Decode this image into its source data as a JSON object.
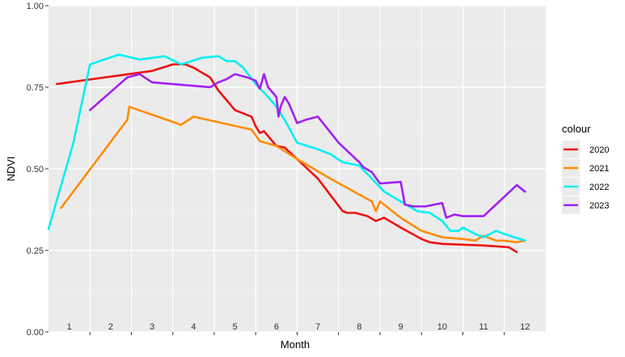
{
  "chart_data": {
    "type": "line",
    "title": "",
    "xlabel": "Month",
    "ylabel": "NDVI",
    "xlim": [
      0.5,
      12.5
    ],
    "ylim": [
      0,
      1
    ],
    "x_inside_labels": [
      "1",
      "2",
      "3",
      "4",
      "5",
      "6",
      "7",
      "8",
      "9",
      "10",
      "11",
      "12"
    ],
    "y_ticks": [
      "0.00",
      "0.25",
      "0.50",
      "0.75",
      "1.00"
    ],
    "y_tick_values": [
      0,
      0.25,
      0.5,
      0.75,
      1.0
    ],
    "grid": true,
    "legend": {
      "title": "colour",
      "position": "right"
    },
    "series": [
      {
        "name": "2020",
        "color": "#ee1111",
        "x": [
          0.7,
          3.0,
          3.5,
          3.8,
          4.0,
          4.4,
          4.5,
          4.6,
          5.0,
          5.4,
          5.5,
          5.6,
          5.7,
          6.0,
          6.2,
          6.5,
          7.0,
          7.3,
          7.6,
          7.7,
          7.9,
          8.2,
          8.4,
          8.5,
          8.6,
          9.0,
          9.5,
          9.7,
          10.0,
          11.0,
          11.6,
          11.8
        ],
        "y": [
          0.76,
          0.8,
          0.82,
          0.82,
          0.81,
          0.78,
          0.76,
          0.74,
          0.68,
          0.66,
          0.63,
          0.61,
          0.615,
          0.57,
          0.565,
          0.53,
          0.47,
          0.42,
          0.37,
          0.365,
          0.365,
          0.355,
          0.34,
          0.345,
          0.35,
          0.32,
          0.285,
          0.275,
          0.27,
          0.265,
          0.26,
          0.245
        ]
      },
      {
        "name": "2021",
        "color": "#ff8c00",
        "x": [
          0.8,
          2.4,
          2.45,
          3.7,
          4.0,
          5.4,
          5.6,
          6.0,
          6.5,
          7.3,
          8.3,
          8.4,
          8.5,
          8.6,
          9.0,
          9.5,
          10.0,
          10.5,
          10.8,
          11.0,
          11.3,
          11.5,
          11.8,
          12.0
        ],
        "y": [
          0.38,
          0.65,
          0.69,
          0.635,
          0.66,
          0.62,
          0.585,
          0.57,
          0.53,
          0.47,
          0.4,
          0.37,
          0.4,
          0.39,
          0.35,
          0.31,
          0.29,
          0.285,
          0.28,
          0.295,
          0.28,
          0.28,
          0.275,
          0.28
        ]
      },
      {
        "name": "2022",
        "color": "#00f0f0",
        "x": [
          0.5,
          1.1,
          1.5,
          2.2,
          2.7,
          3.3,
          3.7,
          4.2,
          4.6,
          4.8,
          5.0,
          5.2,
          5.5,
          5.8,
          6.0,
          6.2,
          6.5,
          7.0,
          7.3,
          7.6,
          8.0,
          8.3,
          8.6,
          9.0,
          9.4,
          9.7,
          10.0,
          10.2,
          10.4,
          10.5,
          10.8,
          11.0,
          11.3,
          11.5,
          12.0
        ],
        "y": [
          0.315,
          0.58,
          0.82,
          0.85,
          0.835,
          0.845,
          0.82,
          0.84,
          0.845,
          0.83,
          0.83,
          0.81,
          0.76,
          0.72,
          0.69,
          0.65,
          0.58,
          0.56,
          0.545,
          0.52,
          0.51,
          0.47,
          0.43,
          0.4,
          0.37,
          0.365,
          0.34,
          0.31,
          0.31,
          0.32,
          0.3,
          0.29,
          0.31,
          0.3,
          0.28
        ]
      },
      {
        "name": "2023",
        "color": "#a020f0",
        "x": [
          1.5,
          2.4,
          2.7,
          3.0,
          4.4,
          4.6,
          4.8,
          5.0,
          5.3,
          5.5,
          5.6,
          5.7,
          5.8,
          6.0,
          6.05,
          6.1,
          6.2,
          6.3,
          6.5,
          6.7,
          7.0,
          7.5,
          8.0,
          8.1,
          8.3,
          8.5,
          9.0,
          9.1,
          9.3,
          9.6,
          10.0,
          10.1,
          10.3,
          10.5,
          11.0,
          11.8,
          12.0
        ],
        "y": [
          0.68,
          0.78,
          0.79,
          0.765,
          0.75,
          0.765,
          0.775,
          0.79,
          0.78,
          0.77,
          0.745,
          0.79,
          0.75,
          0.72,
          0.66,
          0.69,
          0.72,
          0.7,
          0.64,
          0.65,
          0.66,
          0.58,
          0.52,
          0.505,
          0.49,
          0.455,
          0.46,
          0.39,
          0.385,
          0.385,
          0.395,
          0.35,
          0.36,
          0.355,
          0.355,
          0.45,
          0.43
        ]
      }
    ]
  }
}
